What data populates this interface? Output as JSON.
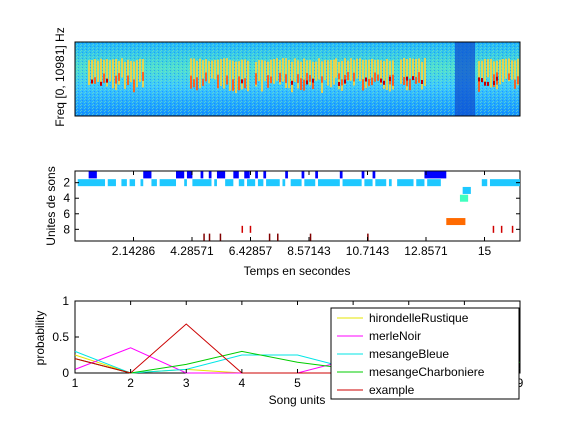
{
  "chart_data": [
    {
      "type": "heatmap",
      "ylabel": "Freq [0, 10981] Hz",
      "description_colormap": "jet"
    },
    {
      "type": "scatter",
      "ylabel": "Unites de sons",
      "xlabel": "Temps en secondes",
      "yticks": [
        "2",
        "4",
        "6",
        "8"
      ],
      "xticks": [
        "2.14286",
        "4.28571",
        "6.42857",
        "8.57143",
        "10.7143",
        "12.8571",
        "15"
      ],
      "xtick_values": [
        2.14286,
        4.28571,
        6.42857,
        8.57143,
        10.7143,
        12.8571,
        15
      ],
      "xlim": [
        0,
        16.3
      ],
      "ylim": [
        0.5,
        9.5
      ],
      "rows": [
        {
          "unit": 1,
          "color": "#0000ff",
          "segments": [
            [
              0.5,
              0.8
            ],
            [
              2.5,
              2.8
            ],
            [
              3.7,
              4.0
            ],
            [
              4.1,
              4.3
            ],
            [
              4.6,
              4.7
            ],
            [
              4.9,
              5.0
            ],
            [
              5.2,
              5.5
            ],
            [
              5.8,
              6.0
            ],
            [
              6.2,
              6.4
            ],
            [
              6.6,
              6.7
            ],
            [
              6.9,
              7.0
            ],
            [
              7.7,
              7.8
            ],
            [
              8.3,
              8.4
            ],
            [
              8.8,
              8.9
            ],
            [
              9.7,
              9.8
            ],
            [
              10.5,
              10.6
            ],
            [
              10.9,
              11.0
            ],
            [
              12.8,
              13.6
            ]
          ]
        },
        {
          "unit": 2,
          "color": "#1ec8ff",
          "segments": [
            [
              0.1,
              1.1
            ],
            [
              1.2,
              1.5
            ],
            [
              1.7,
              1.9
            ],
            [
              2.0,
              2.2
            ],
            [
              2.4,
              2.5
            ],
            [
              2.8,
              3.0
            ],
            [
              3.1,
              3.7
            ],
            [
              4.0,
              4.1
            ],
            [
              4.3,
              5.0
            ],
            [
              5.1,
              5.2
            ],
            [
              5.5,
              5.8
            ],
            [
              6.0,
              6.2
            ],
            [
              6.3,
              6.6
            ],
            [
              6.7,
              6.9
            ],
            [
              7.0,
              7.5
            ],
            [
              7.6,
              7.7
            ],
            [
              7.9,
              8.3
            ],
            [
              8.4,
              8.8
            ],
            [
              8.9,
              9.7
            ],
            [
              9.8,
              10.5
            ],
            [
              10.6,
              10.9
            ],
            [
              11.0,
              11.4
            ],
            [
              11.5,
              11.6
            ],
            [
              11.8,
              12.4
            ],
            [
              12.5,
              12.8
            ],
            [
              12.9,
              13.4
            ],
            [
              14.9,
              15.1
            ],
            [
              15.2,
              16.3
            ]
          ]
        },
        {
          "unit": 3,
          "color": "#1ec8ff",
          "segments": [
            [
              14.2,
              14.5
            ]
          ]
        },
        {
          "unit": 4,
          "color": "#40ffbf",
          "segments": [
            [
              14.1,
              14.4
            ]
          ]
        },
        {
          "unit": 7,
          "color": "#ff6a00",
          "segments": [
            [
              13.6,
              14.3
            ]
          ]
        },
        {
          "unit": 8,
          "color": "#d00000",
          "segments": [
            [
              6.1,
              6.15
            ],
            [
              6.4,
              6.45
            ],
            [
              15.3,
              15.35
            ],
            [
              15.6,
              15.65
            ],
            [
              16.0,
              16.05
            ]
          ]
        },
        {
          "unit": 9,
          "color": "#800000",
          "segments": [
            [
              4.7,
              4.75
            ],
            [
              4.9,
              4.95
            ],
            [
              5.3,
              5.35
            ],
            [
              7.1,
              7.15
            ],
            [
              7.4,
              7.45
            ],
            [
              8.6,
              8.65
            ],
            [
              10.7,
              10.75
            ]
          ]
        }
      ]
    },
    {
      "type": "line",
      "ylabel": "probability",
      "xlabel": "Song units",
      "xticks": [
        "1",
        "2",
        "3",
        "4",
        "5",
        "6",
        "7",
        "8",
        "9"
      ],
      "yticks": [
        "0",
        "0.5",
        "1"
      ],
      "xlim": [
        1,
        9
      ],
      "ylim": [
        0,
        1
      ],
      "x": [
        1,
        2,
        3,
        4,
        5,
        6,
        7,
        8,
        9
      ],
      "series": [
        {
          "name": "hirondelleRustique",
          "color": "#e6e600",
          "values": [
            0.25,
            0.0,
            0.05,
            0.0,
            0.0,
            0.0,
            0.0,
            0.0,
            0.0
          ]
        },
        {
          "name": "merleNoir",
          "color": "#ff00ff",
          "values": [
            0.05,
            0.35,
            0.0,
            0.0,
            0.0,
            0.2,
            0.0,
            0.0,
            0.0
          ]
        },
        {
          "name": "mesangeBleue",
          "color": "#00e6e6",
          "values": [
            0.3,
            0.0,
            0.05,
            0.25,
            0.25,
            0.05,
            0.05,
            0.05,
            0.05
          ]
        },
        {
          "name": "mesangeCharboniere",
          "color": "#00cc00",
          "values": [
            0.2,
            0.0,
            0.12,
            0.3,
            0.15,
            0.05,
            0.05,
            0.1,
            0.15
          ]
        },
        {
          "name": "example",
          "color": "#cc0000",
          "values": [
            0.2,
            0.0,
            0.68,
            0.0,
            0.0,
            0.0,
            0.0,
            0.0,
            0.0
          ]
        }
      ]
    }
  ]
}
